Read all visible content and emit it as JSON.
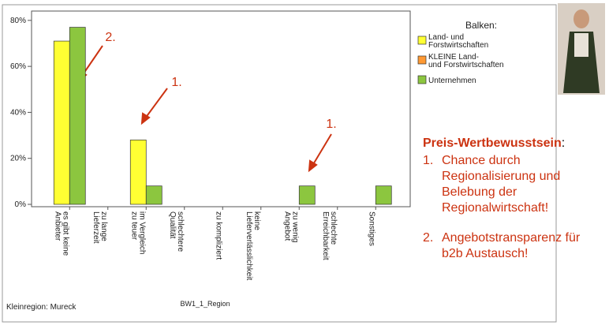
{
  "chart_data": {
    "type": "bar",
    "categories": [
      "es gibt keine Anbieter",
      "zu lange Lieferzeit",
      "im Vergleich zu teuer",
      "schlechtere Qualität",
      "zu kompliziert",
      "keine Lieferverlässlichkeit",
      "zu wenig Angebot",
      "schlechte Erreichbarkeit",
      "Sonstiges"
    ],
    "series": [
      {
        "name": "Land- und Forstwirtschaften",
        "color": "#ffff33",
        "values": [
          71,
          0,
          28,
          0,
          0,
          0,
          0,
          0,
          0
        ]
      },
      {
        "name": "KLEINE Land- und Forstwirtschaften",
        "color": "#ff9933",
        "values": [
          0,
          0,
          0,
          0,
          0,
          0,
          0,
          0,
          0
        ]
      },
      {
        "name": "Unternehmen",
        "color": "#8cc63f",
        "values": [
          77,
          0,
          8,
          0,
          0,
          0,
          8,
          0,
          8
        ]
      }
    ],
    "ylim": [
      0,
      82
    ],
    "yticks": [
      {
        "value": 0,
        "label": "0%"
      },
      {
        "value": 20,
        "label": "20%"
      },
      {
        "value": 40,
        "label": "40%"
      },
      {
        "value": 60,
        "label": "60%"
      },
      {
        "value": 80,
        "label": "80%"
      }
    ],
    "legend_title": "Balken:",
    "x_label": "BW1_1_Region",
    "note": "Kleinregion: Mureck",
    "annotations": [
      "2.",
      "1.",
      "1."
    ]
  },
  "panel": {
    "heading": "Preis-Wertbewusstsein",
    "heading_suffix": ":",
    "items": [
      {
        "marker": "1.",
        "text": "Chance durch Regionalisierung und Belebung der Regionalwirtschaft!"
      },
      {
        "marker": "2.",
        "text": "Angebotstransparenz für b2b Austausch!"
      }
    ]
  }
}
